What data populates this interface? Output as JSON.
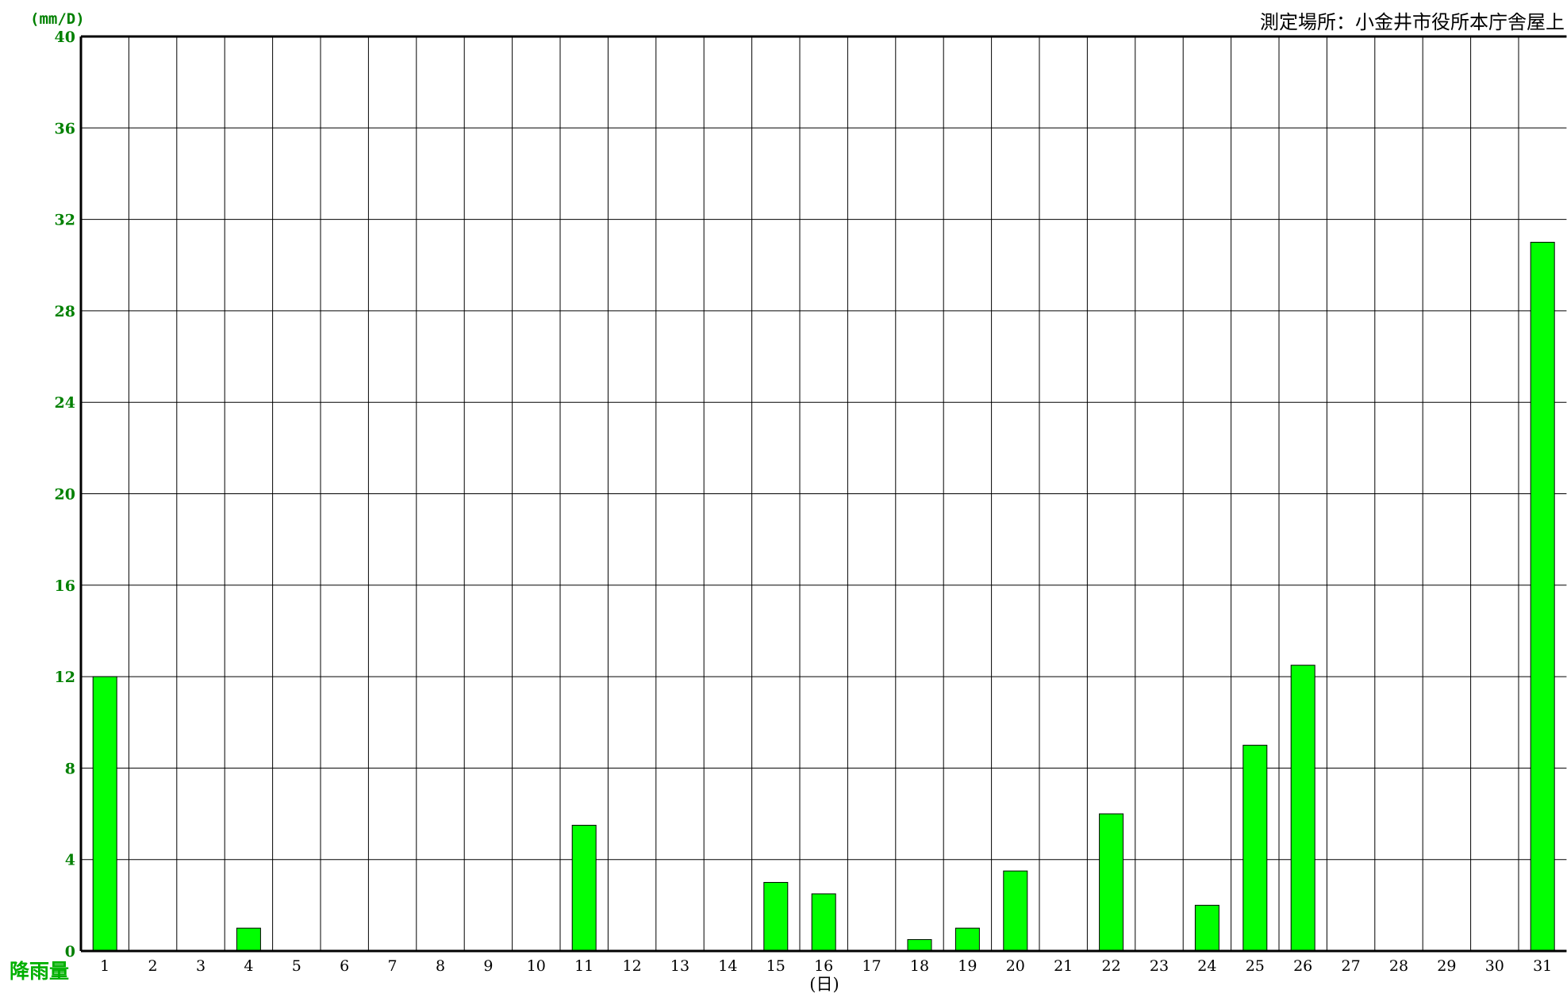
{
  "chart_data": {
    "type": "bar",
    "title": "",
    "location_label": "測定場所：小金井市役所本庁舎屋上",
    "ylabel": "降雨量",
    "yunit": "(mm/D)",
    "xlabel": "(日)",
    "ylim": [
      0,
      40
    ],
    "yticks": [
      0,
      4,
      8,
      12,
      16,
      20,
      24,
      28,
      32,
      36,
      40
    ],
    "grid": true,
    "categories": [
      "1",
      "2",
      "3",
      "4",
      "5",
      "6",
      "7",
      "8",
      "9",
      "10",
      "11",
      "12",
      "13",
      "14",
      "15",
      "16",
      "17",
      "18",
      "19",
      "20",
      "21",
      "22",
      "23",
      "24",
      "25",
      "26",
      "27",
      "28",
      "29",
      "30",
      "31"
    ],
    "series": [
      {
        "name": "",
        "values": [
          12,
          0,
          0,
          1,
          0,
          0,
          0,
          0,
          0,
          0,
          5.5,
          0,
          0,
          0,
          3,
          2.5,
          0,
          0.5,
          1,
          3.5,
          0,
          6,
          0,
          2,
          9,
          12.5,
          0,
          0,
          0,
          0,
          31
        ]
      }
    ],
    "colors": {
      "bar": "#00ff00",
      "bar_outline": "#000000",
      "axis_text": "#008000",
      "ylabel_text": "#00b000",
      "grid": "#000000"
    }
  }
}
